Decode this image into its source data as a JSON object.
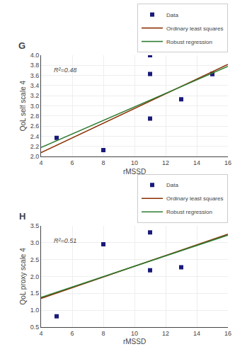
{
  "chart_data": [
    {
      "type": "scatter",
      "title": "G",
      "xlabel": "rMSSD",
      "ylabel": "QoL self scale 4",
      "annotations": [
        "R²=0.48"
      ],
      "series": [
        {
          "name": "Data",
          "type": "scatter",
          "marker": "square",
          "color": "#1a1a7a",
          "x": [
            5,
            8,
            11,
            11,
            11,
            13,
            15,
            15
          ],
          "values": [
            2.37,
            2.13,
            4.0,
            3.63,
            2.75,
            3.13,
            3.63,
            3.63
          ]
        },
        {
          "name": "Ordinary least squares",
          "type": "line",
          "color": "#8B3000",
          "x": [
            4,
            16
          ],
          "values": [
            2.08,
            3.82
          ]
        },
        {
          "name": "Robust regression",
          "type": "line",
          "color": "#2E7D32",
          "x": [
            4,
            16
          ],
          "values": [
            2.18,
            3.78
          ]
        }
      ],
      "xlim": [
        4,
        16
      ],
      "xticks": [
        4,
        6,
        8,
        10,
        12,
        14,
        16
      ],
      "ylim": [
        2.0,
        4.0
      ],
      "yticks": [
        {
          "value": 2.0,
          "label": "2.0"
        },
        2.2,
        2.4,
        2.6,
        2.8,
        {
          "value": 3.0,
          "label": "3.0"
        },
        3.2,
        3.4,
        3.6,
        3.8,
        {
          "value": 4.0,
          "label": "4.0"
        }
      ],
      "grid": true,
      "legend": "upper right"
    },
    {
      "type": "scatter",
      "title": "H",
      "xlabel": "rMSSD",
      "ylabel": "QoL proxy scale 4",
      "annotations": [
        "R²=0.51"
      ],
      "series": [
        {
          "name": "Data",
          "type": "scatter",
          "marker": "square",
          "color": "#1a1a7a",
          "x": [
            5,
            8,
            11,
            11,
            13
          ],
          "values": [
            0.82,
            2.95,
            3.3,
            2.18,
            2.27
          ]
        },
        {
          "name": "Ordinary least squares",
          "type": "line",
          "color": "#8B3000",
          "x": [
            4,
            16
          ],
          "values": [
            1.35,
            3.25
          ]
        },
        {
          "name": "Robust regression",
          "type": "line",
          "color": "#2E7D32",
          "x": [
            4,
            16
          ],
          "values": [
            1.38,
            3.22
          ]
        }
      ],
      "xlim": [
        4,
        16
      ],
      "xticks": [
        4,
        6,
        8,
        10,
        12,
        14,
        16
      ],
      "ylim": [
        0.5,
        3.5
      ],
      "yticks": [
        0.5,
        {
          "value": 1.0,
          "label": "1.0"
        },
        1.5,
        {
          "value": 2.0,
          "label": "2.0"
        },
        2.5,
        {
          "value": 3.0,
          "label": "3.0"
        },
        3.5
      ],
      "grid": true,
      "legend": "upper right"
    }
  ]
}
